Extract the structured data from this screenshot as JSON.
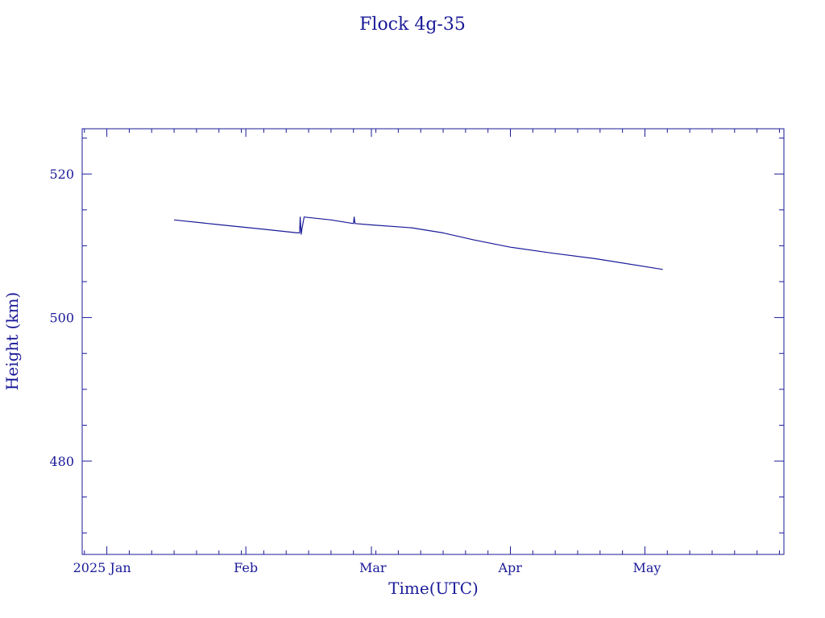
{
  "chart_data": {
    "type": "line",
    "title": "Flock 4g-35",
    "xlabel": "Time(UTC)",
    "ylabel": "Height (km)",
    "x_tick_labels": [
      "2025 Jan",
      "Feb",
      "Mar",
      "Apr",
      "May"
    ],
    "x_tick_dates": [
      "2025-01-01",
      "2025-02-01",
      "2025-03-01",
      "2025-04-01",
      "2025-05-01"
    ],
    "xlim": [
      "2024-12-26T12:00",
      "2025-06-01"
    ],
    "y_ticks": [
      480,
      500,
      520
    ],
    "ylim": [
      467,
      526.3
    ],
    "grid": false,
    "color": "#1a1a99",
    "series": [
      {
        "x": [
          "2025-01-16",
          "2025-01-25",
          "2025-02-05",
          "2025-02-12T12:00",
          "2025-02-13",
          "2025-02-13T03:00",
          "2025-02-13T08:00",
          "2025-02-13T12:00",
          "2025-02-14",
          "2025-02-20",
          "2025-02-25",
          "2025-02-25T04:00",
          "2025-02-25T08:00",
          "2025-03-01",
          "2025-03-10",
          "2025-03-17",
          "2025-03-24",
          "2025-04-01",
          "2025-04-10",
          "2025-04-20",
          "2025-05-05"
        ],
        "y": [
          513.6,
          513.0,
          512.3,
          511.8,
          511.8,
          514.0,
          511.6,
          512.3,
          514.0,
          513.6,
          513.1,
          514.0,
          513.1,
          512.9,
          512.5,
          511.8,
          510.8,
          509.8,
          509.0,
          508.2,
          506.7
        ]
      }
    ]
  }
}
